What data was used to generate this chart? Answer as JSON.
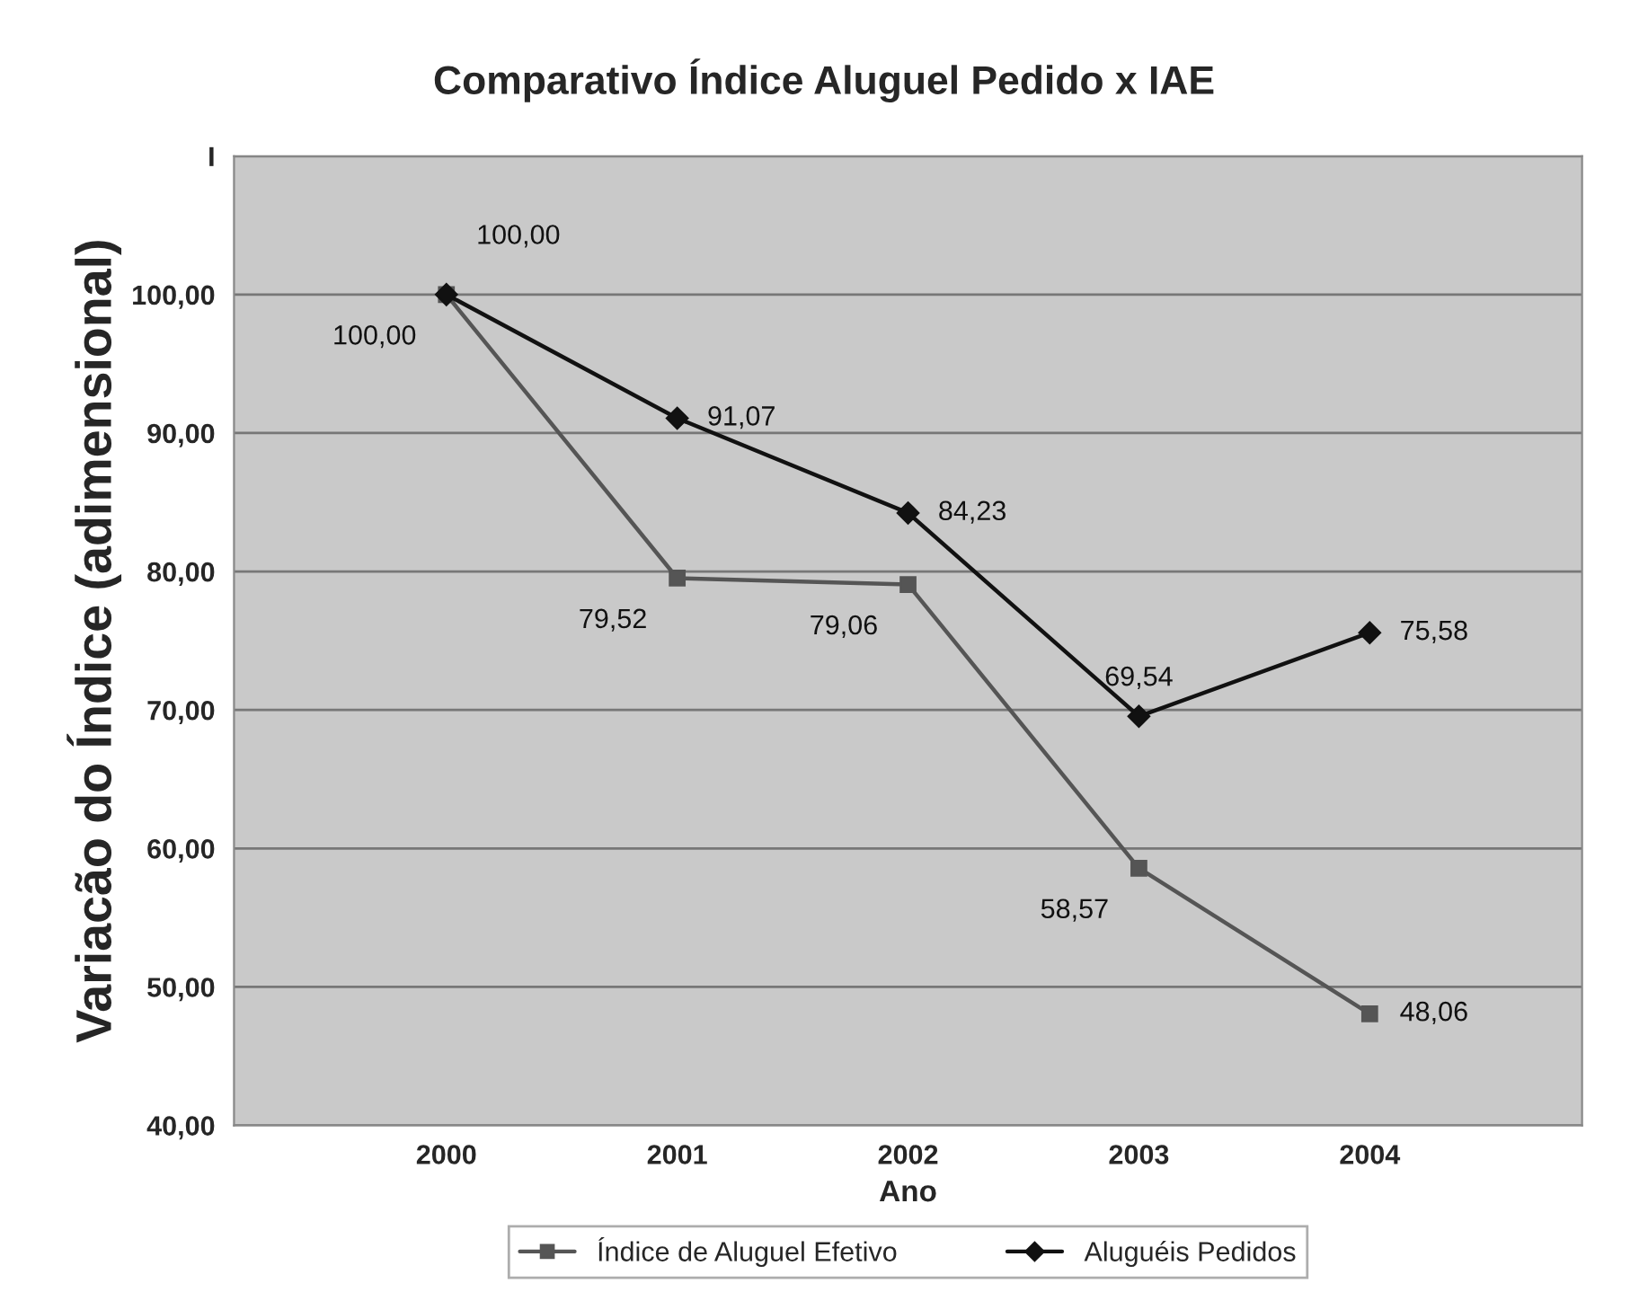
{
  "chart_data": {
    "type": "line",
    "title": "Comparativo Índice Aluguel Pedido x IAE",
    "xlabel": "Ano",
    "ylabel": "Variacão do Índice (adimensional)",
    "categories": [
      "2000",
      "2001",
      "2002",
      "2003",
      "2004"
    ],
    "series": [
      {
        "name": "Índice de Aluguel Efetivo",
        "color": "#555555",
        "marker": "square",
        "values": [
          100.0,
          79.52,
          79.06,
          58.57,
          48.06
        ],
        "value_labels": [
          "100,00",
          "79,52",
          "79,06",
          "58,57",
          "48,06"
        ]
      },
      {
        "name": "Aluguéis Pedidos",
        "color": "#111111",
        "marker": "diamond",
        "values": [
          100.0,
          91.07,
          84.23,
          69.54,
          75.58
        ],
        "value_labels": [
          "100,00",
          "91,07",
          "84,23",
          "69,54",
          "75,58"
        ]
      }
    ],
    "ylim": [
      40,
      110
    ],
    "yticks": [
      {
        "value": 40,
        "label": "40,00"
      },
      {
        "value": 50,
        "label": "50,00"
      },
      {
        "value": 60,
        "label": "60,00"
      },
      {
        "value": 70,
        "label": "70,00"
      },
      {
        "value": 80,
        "label": "80,00"
      },
      {
        "value": 90,
        "label": "90,00"
      },
      {
        "value": 100,
        "label": "100,00"
      },
      {
        "value": 110,
        "label": "I"
      }
    ],
    "grid": "y",
    "legend": "bottom",
    "line_style": "solid"
  }
}
